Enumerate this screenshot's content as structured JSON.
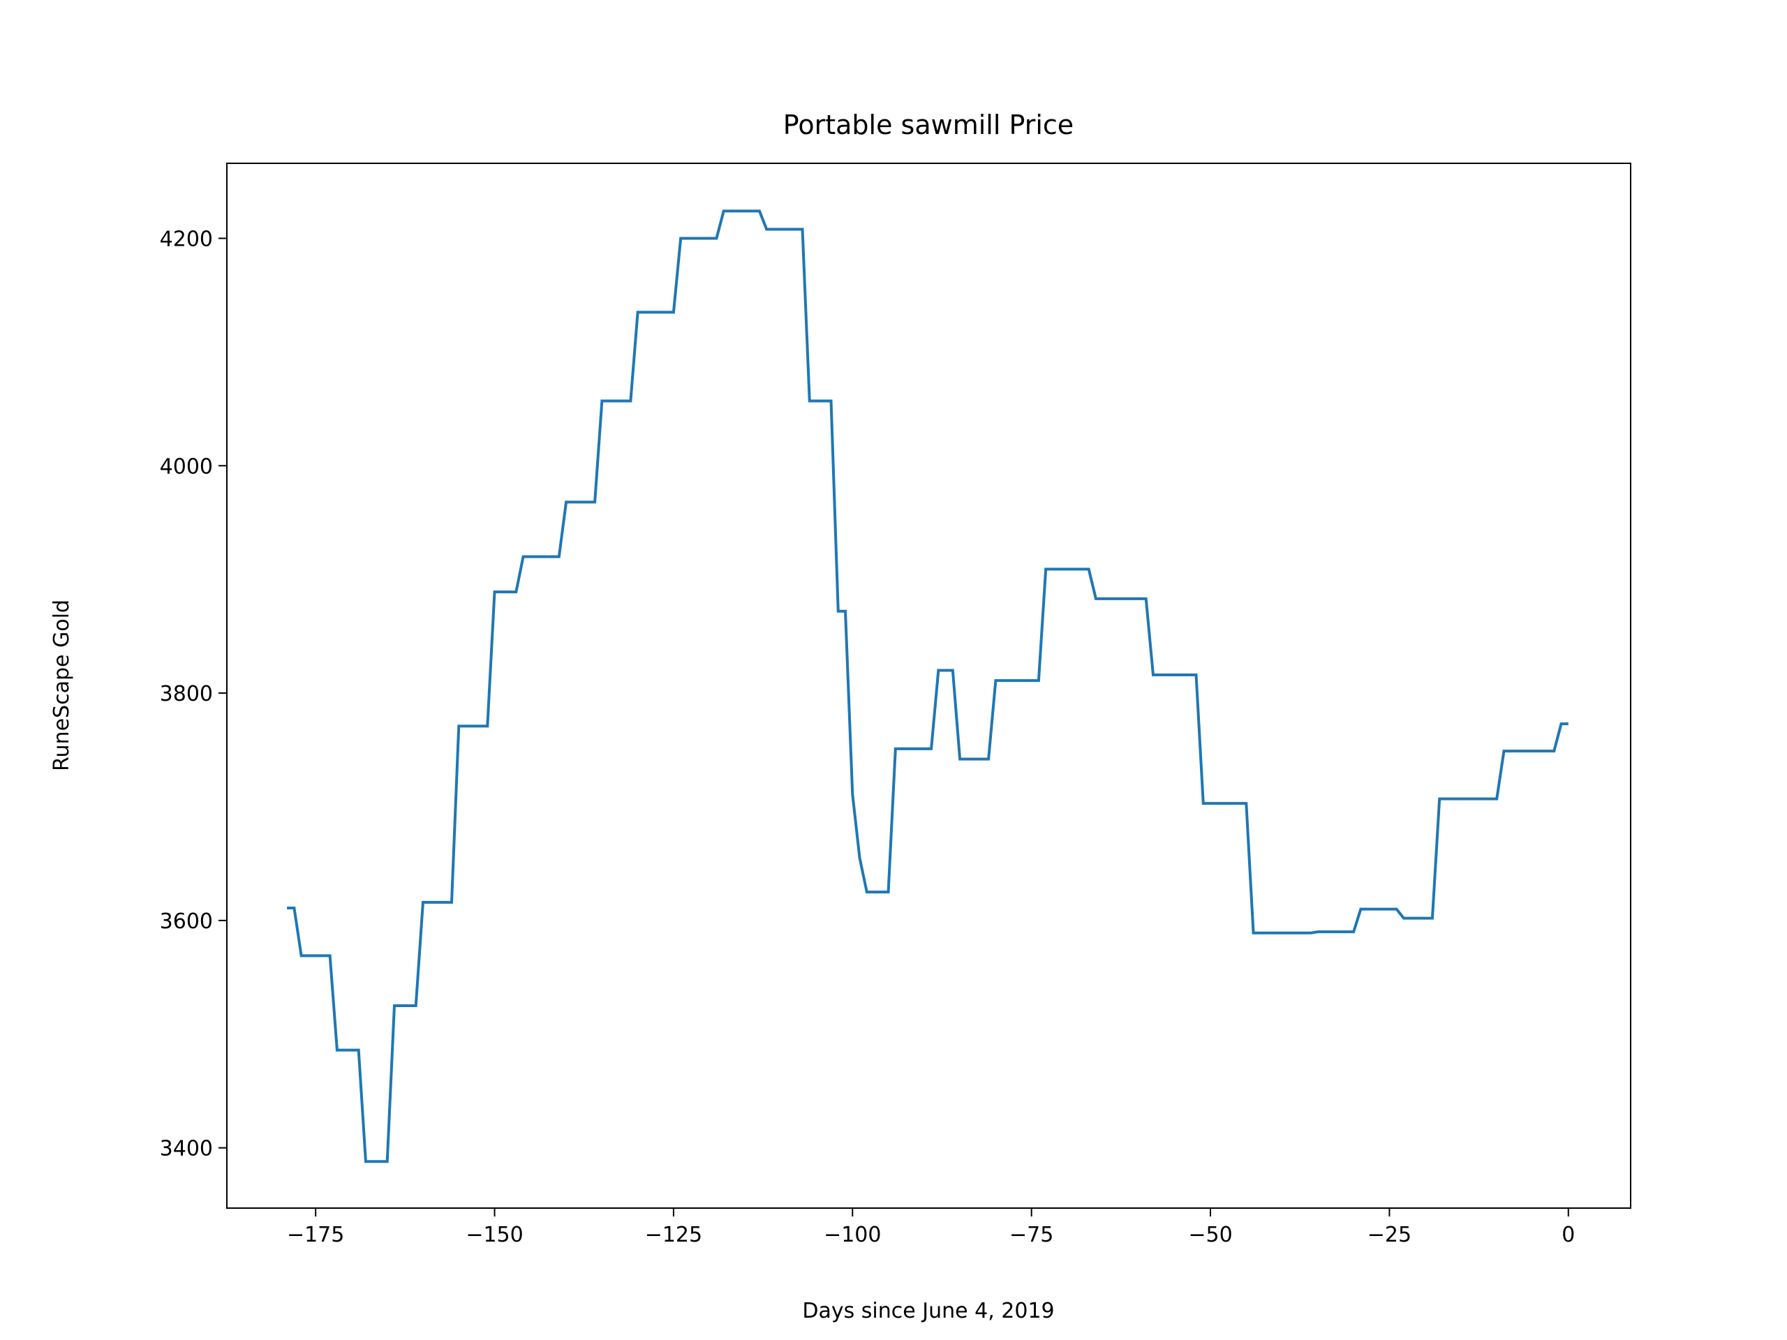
{
  "chart_data": {
    "type": "line",
    "title": "Portable sawmill Price",
    "xlabel": "Days since June 4, 2019",
    "ylabel": "RuneScape Gold",
    "x": [
      -179,
      -178,
      -177,
      -173,
      -172,
      -169,
      -168,
      -165,
      -164,
      -161,
      -160,
      -156,
      -155,
      -151,
      -150,
      -147,
      -146,
      -141,
      -140,
      -136,
      -135,
      -131,
      -130,
      -125,
      -124,
      -119,
      -118,
      -113,
      -112,
      -107,
      -106,
      -103,
      -102,
      -101,
      -100,
      -99,
      -98,
      -95,
      -94,
      -89,
      -88,
      -86,
      -85,
      -81,
      -80,
      -74,
      -73,
      -67,
      -66,
      -59,
      -58,
      -52,
      -51,
      -45,
      -44,
      -36,
      -35,
      -30,
      -29,
      -24,
      -23,
      -19,
      -18,
      -10,
      -9,
      -2,
      -1,
      0
    ],
    "series": [
      {
        "name": "Portable sawmill",
        "color": "#1f77b4",
        "values": [
          3611,
          3611,
          3569,
          3569,
          3486,
          3486,
          3388,
          3388,
          3525,
          3525,
          3616,
          3616,
          3771,
          3771,
          3889,
          3889,
          3920,
          3920,
          3968,
          3968,
          4057,
          4057,
          4135,
          4135,
          4200,
          4200,
          4224,
          4224,
          4208,
          4208,
          4057,
          4057,
          3872,
          3872,
          3711,
          3655,
          3625,
          3625,
          3751,
          3751,
          3820,
          3820,
          3742,
          3742,
          3811,
          3811,
          3909,
          3909,
          3883,
          3883,
          3816,
          3816,
          3703,
          3703,
          3589,
          3589,
          3590,
          3590,
          3610,
          3610,
          3602,
          3602,
          3707,
          3707,
          3749,
          3749,
          3773,
          3773
        ]
      }
    ],
    "xlim": [
      -187.4,
      8.7
    ],
    "ylim": [
      3347,
      4266
    ],
    "xticks": [
      {
        "value": -175,
        "label": "−175"
      },
      {
        "value": -150,
        "label": "−150"
      },
      {
        "value": -125,
        "label": "−125"
      },
      {
        "value": -100,
        "label": "−100"
      },
      {
        "value": -75,
        "label": "−75"
      },
      {
        "value": -50,
        "label": "−50"
      },
      {
        "value": -25,
        "label": "−25"
      },
      0
    ],
    "yticks": [
      3400,
      3600,
      3800,
      4000,
      4200
    ]
  }
}
